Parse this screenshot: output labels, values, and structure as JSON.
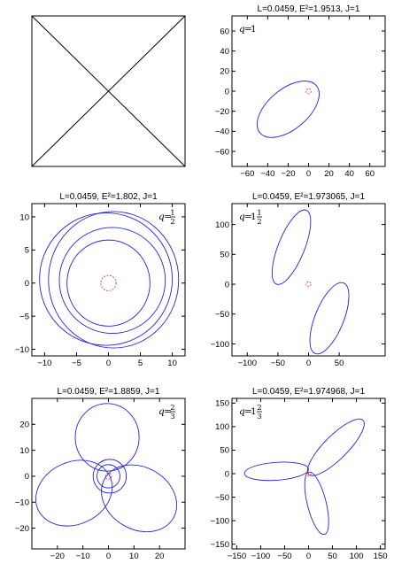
{
  "colors": {
    "orbit": "#2323e6",
    "horizon": "#e03c50",
    "axis": "#000000"
  },
  "chart_data": [
    {
      "type": "diagram",
      "title": "",
      "shape": "square-with-diagonals"
    },
    {
      "type": "line",
      "title": "L=0.0459, E²=1.9513, J=1",
      "label": {
        "q": "q",
        "eq": "=",
        "whole": "1",
        "num": "",
        "den": ""
      },
      "xlim": [
        -75,
        75
      ],
      "ylim": [
        -75,
        75
      ],
      "xticks": [
        -60,
        -40,
        -20,
        0,
        20,
        40,
        60
      ],
      "yticks": [
        -60,
        -40,
        -20,
        0,
        20,
        40,
        60
      ],
      "ellipses": [
        {
          "cx": -20,
          "cy": -18,
          "rx": 36,
          "ry": 20,
          "angle": 40
        }
      ],
      "horizon": {
        "cx": 0,
        "cy": 0,
        "r": 2.5
      }
    },
    {
      "type": "line",
      "title": "L=0.0459, E²=1.802, J=1",
      "label": {
        "q": "q",
        "eq": "=",
        "whole": "",
        "num": "1",
        "den": "2"
      },
      "xlim": [
        -12,
        12
      ],
      "ylim": [
        -11,
        12
      ],
      "xticks": [
        -10,
        -5,
        0,
        5,
        10
      ],
      "yticks": [
        -10,
        -5,
        0,
        5,
        10
      ],
      "ellipses": [
        {
          "cx": 0,
          "cy": 0,
          "rx": 6.5,
          "ry": 6.5,
          "angle": 0
        },
        {
          "cx": 0.6,
          "cy": 0.4,
          "rx": 8.3,
          "ry": 8.0,
          "angle": 0
        },
        {
          "cx": 0.8,
          "cy": 0.5,
          "rx": 10.2,
          "ry": 10.3,
          "angle": 0
        },
        {
          "cx": -0.4,
          "cy": 0.6,
          "rx": 10.4,
          "ry": 10.0,
          "angle": 0
        }
      ],
      "horizon": {
        "cx": 0,
        "cy": 0,
        "r": 1.2
      }
    },
    {
      "type": "line",
      "title": "L=0.0459, E²=1.973065, J=1",
      "label": {
        "q": "q",
        "eq": "=",
        "whole": "1",
        "num": "1",
        "den": "2"
      },
      "xlim": [
        -125,
        125
      ],
      "ylim": [
        -120,
        135
      ],
      "xticks": [
        -100,
        -50,
        0,
        50
      ],
      "yticks": [
        -100,
        -50,
        0,
        50,
        100
      ],
      "ellipses": [
        {
          "cx": -28,
          "cy": 62,
          "rx": 65,
          "ry": 22,
          "angle": 68
        },
        {
          "cx": 34,
          "cy": -57,
          "rx": 62,
          "ry": 24,
          "angle": -112
        }
      ],
      "horizon": {
        "cx": 0,
        "cy": 0,
        "r": 4
      }
    },
    {
      "type": "line",
      "title": "L=0.0459, E²=1.8859, J=1",
      "label": {
        "q": "q",
        "eq": "=",
        "whole": "",
        "num": "2",
        "den": "3"
      },
      "xlim": [
        -30,
        30
      ],
      "ylim": [
        -28,
        30
      ],
      "xticks": [
        -20,
        -10,
        0,
        10,
        20
      ],
      "yticks": [
        -20,
        -10,
        0,
        10,
        20
      ],
      "ellipses": [
        {
          "cx": 0,
          "cy": 0,
          "rx": 4.5,
          "ry": 4.5,
          "angle": 0
        },
        {
          "cx": 0.5,
          "cy": 0,
          "rx": 6.5,
          "ry": 6.5,
          "angle": 0
        },
        {
          "cx": -0.5,
          "cy": 15,
          "rx": 12.5,
          "ry": 13,
          "angle": 0
        },
        {
          "cx": -13.5,
          "cy": -6.5,
          "rx": 15.5,
          "ry": 12,
          "angle": 25
        },
        {
          "cx": 12,
          "cy": -8.5,
          "rx": 15.5,
          "ry": 12,
          "angle": -30
        }
      ],
      "horizon": {
        "cx": 0,
        "cy": 0,
        "r": 1.2
      }
    },
    {
      "type": "line",
      "title": "L=0.0459, E²=1.974968, J=1",
      "label": {
        "q": "q",
        "eq": "=",
        "whole": "1",
        "num": "2",
        "den": "3"
      },
      "xlim": [
        -160,
        160
      ],
      "ylim": [
        -160,
        160
      ],
      "xticks": [
        -150,
        -100,
        -50,
        0,
        50,
        100,
        150
      ],
      "yticks": [
        -150,
        -100,
        -50,
        0,
        50,
        100,
        150
      ],
      "ellipses": [
        {
          "cx": 57,
          "cy": 56,
          "rx": 80,
          "ry": 25,
          "angle": 45
        },
        {
          "cx": -67,
          "cy": 5,
          "rx": 67,
          "ry": 19,
          "angle": 4
        },
        {
          "cx": 17,
          "cy": -63,
          "rx": 67,
          "ry": 20,
          "angle": -76
        }
      ],
      "horizon": {
        "cx": 0,
        "cy": 0,
        "r": 5
      }
    }
  ]
}
